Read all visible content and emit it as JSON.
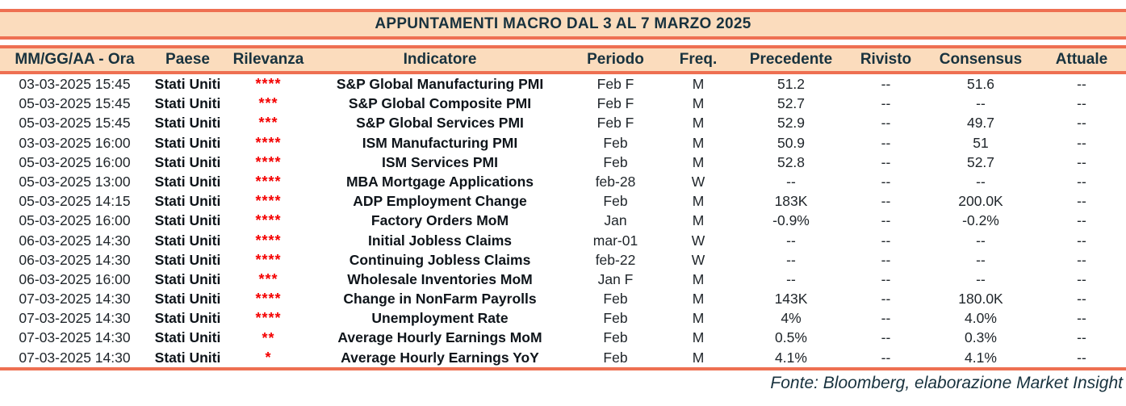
{
  "title": "APPUNTAMENTI MACRO DAL 3 AL 7 MARZO 2025",
  "columns": [
    "MM/GG/AA - Ora",
    "Paese",
    "Rilevanza",
    "Indicatore",
    "Periodo",
    "Freq.",
    "Precedente",
    "Rivisto",
    "Consensus",
    "Attuale"
  ],
  "rows": [
    {
      "datetime": "03-03-2025 15:45",
      "country": "Stati Uniti",
      "relevance": "****",
      "indicator": "S&P Global Manufacturing PMI",
      "period": "Feb F",
      "freq": "M",
      "previous": "51.2",
      "revised": "--",
      "consensus": "51.6",
      "actual": "--"
    },
    {
      "datetime": "05-03-2025 15:45",
      "country": "Stati Uniti",
      "relevance": "***",
      "indicator": "S&P Global Composite PMI",
      "period": "Feb F",
      "freq": "M",
      "previous": "52.7",
      "revised": "--",
      "consensus": "--",
      "actual": "--"
    },
    {
      "datetime": "05-03-2025 15:45",
      "country": "Stati Uniti",
      "relevance": "***",
      "indicator": "S&P Global Services PMI",
      "period": "Feb F",
      "freq": "M",
      "previous": "52.9",
      "revised": "--",
      "consensus": "49.7",
      "actual": "--"
    },
    {
      "datetime": "03-03-2025 16:00",
      "country": "Stati Uniti",
      "relevance": "****",
      "indicator": "ISM Manufacturing PMI",
      "period": "Feb",
      "freq": "M",
      "previous": "50.9",
      "revised": "--",
      "consensus": "51",
      "actual": "--"
    },
    {
      "datetime": "05-03-2025 16:00",
      "country": "Stati Uniti",
      "relevance": "****",
      "indicator": "ISM Services PMI",
      "period": "Feb",
      "freq": "M",
      "previous": "52.8",
      "revised": "--",
      "consensus": "52.7",
      "actual": "--"
    },
    {
      "datetime": "05-03-2025 13:00",
      "country": "Stati Uniti",
      "relevance": "****",
      "indicator": "MBA Mortgage Applications",
      "period": "feb-28",
      "freq": "W",
      "previous": "--",
      "revised": "--",
      "consensus": "--",
      "actual": "--"
    },
    {
      "datetime": "05-03-2025 14:15",
      "country": "Stati Uniti",
      "relevance": "****",
      "indicator": "ADP Employment Change",
      "period": "Feb",
      "freq": "M",
      "previous": "183K",
      "revised": "--",
      "consensus": "200.0K",
      "actual": "--"
    },
    {
      "datetime": "05-03-2025 16:00",
      "country": "Stati Uniti",
      "relevance": "****",
      "indicator": "Factory Orders MoM",
      "period": "Jan",
      "freq": "M",
      "previous": "-0.9%",
      "revised": "--",
      "consensus": "-0.2%",
      "actual": "--"
    },
    {
      "datetime": "06-03-2025 14:30",
      "country": "Stati Uniti",
      "relevance": "****",
      "indicator": "Initial Jobless Claims",
      "period": "mar-01",
      "freq": "W",
      "previous": "--",
      "revised": "--",
      "consensus": "--",
      "actual": "--"
    },
    {
      "datetime": "06-03-2025 14:30",
      "country": "Stati Uniti",
      "relevance": "****",
      "indicator": "Continuing Jobless Claims",
      "period": "feb-22",
      "freq": "W",
      "previous": "--",
      "revised": "--",
      "consensus": "--",
      "actual": "--"
    },
    {
      "datetime": "06-03-2025 16:00",
      "country": "Stati Uniti",
      "relevance": "***",
      "indicator": "Wholesale Inventories MoM",
      "period": "Jan F",
      "freq": "M",
      "previous": "--",
      "revised": "--",
      "consensus": "--",
      "actual": "--"
    },
    {
      "datetime": "07-03-2025 14:30",
      "country": "Stati Uniti",
      "relevance": "****",
      "indicator": "Change in NonFarm Payrolls",
      "period": "Feb",
      "freq": "M",
      "previous": "143K",
      "revised": "--",
      "consensus": "180.0K",
      "actual": "--"
    },
    {
      "datetime": "07-03-2025 14:30",
      "country": "Stati Uniti",
      "relevance": "****",
      "indicator": "Unemployment Rate",
      "period": "Feb",
      "freq": "M",
      "previous": "4%",
      "revised": "--",
      "consensus": "4.0%",
      "actual": "--"
    },
    {
      "datetime": "07-03-2025 14:30",
      "country": "Stati Uniti",
      "relevance": "**",
      "indicator": "Average Hourly Earnings MoM",
      "period": "Feb",
      "freq": "M",
      "previous": "0.5%",
      "revised": "--",
      "consensus": "0.3%",
      "actual": "--"
    },
    {
      "datetime": "07-03-2025 14:30",
      "country": "Stati Uniti",
      "relevance": "*",
      "indicator": "Average Hourly Earnings YoY",
      "period": "Feb",
      "freq": "M",
      "previous": "4.1%",
      "revised": "--",
      "consensus": "4.1%",
      "actual": "--"
    }
  ],
  "footer": {
    "source": "Fonte: Bloomberg, elaborazione Market Insight"
  },
  "colors": {
    "peach": "#FBDCBD",
    "coral": "#EE7052",
    "navy": "#18323E",
    "red": "#F40000"
  }
}
